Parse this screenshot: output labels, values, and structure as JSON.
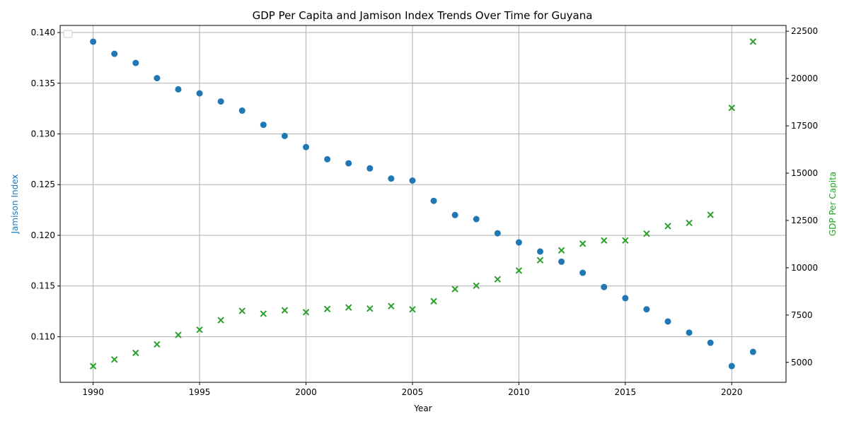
{
  "chart_data": {
    "type": "scatter",
    "title": "GDP Per Capita and Jamison Index Trends Over Time for Guyana",
    "xlabel": "Year",
    "x": [
      1990,
      1991,
      1992,
      1993,
      1994,
      1995,
      1996,
      1997,
      1998,
      1999,
      2000,
      2001,
      2002,
      2003,
      2004,
      2005,
      2006,
      2007,
      2008,
      2009,
      2010,
      2011,
      2012,
      2013,
      2014,
      2015,
      2016,
      2017,
      2018,
      2019,
      2020,
      2021
    ],
    "xlim": [
      1988.45,
      2022.55
    ],
    "xticks": [
      1990,
      1995,
      2000,
      2005,
      2010,
      2015,
      2020
    ],
    "grid": true,
    "legend": "upper-left, empty",
    "series": [
      {
        "name": "Jamison Index",
        "axis": "left",
        "marker": "circle",
        "color": "#1f77b4",
        "values": [
          0.1391,
          0.1379,
          0.137,
          0.1355,
          0.1344,
          0.134,
          0.1332,
          0.1323,
          0.1309,
          0.1298,
          0.1287,
          0.1275,
          0.1271,
          0.1266,
          0.1256,
          0.1254,
          0.1234,
          0.122,
          0.1216,
          0.1202,
          0.1193,
          0.1184,
          0.1174,
          0.1163,
          0.1149,
          0.1138,
          0.1127,
          0.1115,
          0.1104,
          0.1094,
          0.1071,
          0.1085
        ]
      },
      {
        "name": "GDP Per Capita",
        "axis": "right",
        "marker": "x",
        "color": "#2ca02c",
        "values": [
          4800,
          5150,
          5500,
          5950,
          6450,
          6720,
          7230,
          7720,
          7570,
          7750,
          7650,
          7820,
          7900,
          7840,
          7970,
          7800,
          8230,
          8870,
          9050,
          9390,
          9850,
          10400,
          10920,
          11270,
          11440,
          11440,
          11800,
          12200,
          12370,
          12800,
          18450,
          21950
        ]
      }
    ],
    "left_axis": {
      "label": "Jamison Index",
      "ylim": [
        0.1055,
        0.1407
      ],
      "ticks": [
        "0.110",
        "0.115",
        "0.120",
        "0.125",
        "0.130",
        "0.135",
        "0.140"
      ],
      "color": "#1f77b4"
    },
    "right_axis": {
      "label": "GDP Per Capita",
      "ylim": [
        3945,
        22805
      ],
      "ticks": [
        "5000",
        "7500",
        "10000",
        "12500",
        "15000",
        "17500",
        "20000",
        "22500"
      ],
      "color": "#2ca02c"
    }
  }
}
